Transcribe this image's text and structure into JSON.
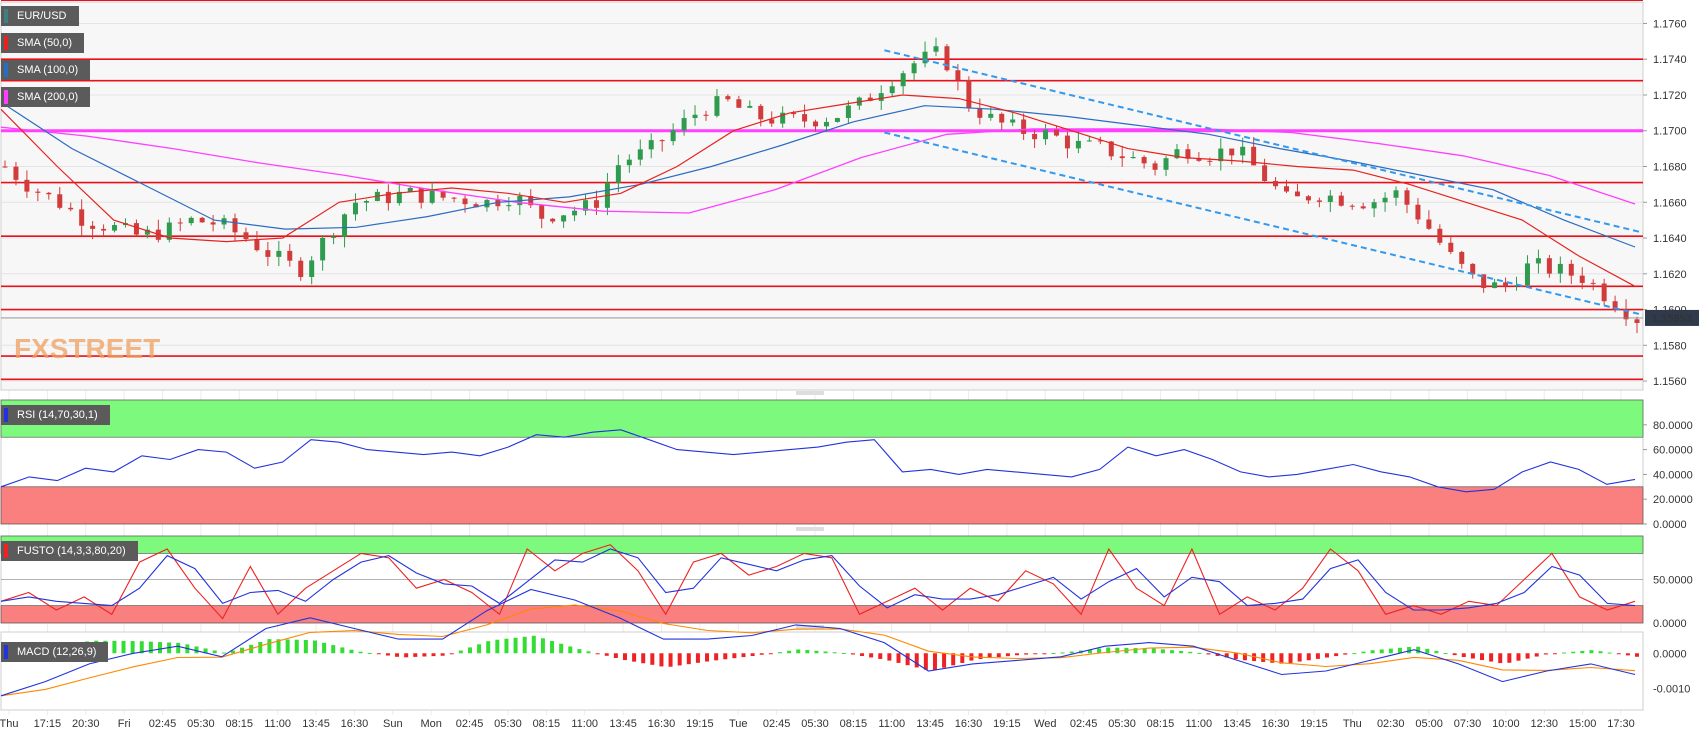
{
  "symbol": "EUR/USD",
  "watermark": "FXSTREET",
  "last_price": "1.15953",
  "colors": {
    "sma50": "#e8231f",
    "sma100": "#2b6cc0",
    "sma200": "#ff40ff",
    "level": "#e8111b",
    "channel": "#3399ee",
    "rsi": "#2233dd",
    "fusto_k": "#ee2222",
    "fusto_d": "#2233dd",
    "macd": "#2233dd",
    "signal": "#ff8800",
    "overbought": "#7dfa7d",
    "oversold": "#fa7f7f",
    "bull": "#2e9b4e",
    "bear": "#d23b3b",
    "price_tag": "#2f3b4c"
  },
  "indicators": {
    "main": [
      "EUR/USD",
      "SMA (50,0)",
      "SMA (100,0)",
      "SMA (200,0)"
    ],
    "rsi": "RSI (14,70,30,1)",
    "fusto": "FUSTO (14,3,3,80,20)",
    "macd": "MACD (12,26,9)"
  },
  "chart_data": {
    "type": "candlestick",
    "x_ticks": [
      "Thu",
      "17:15",
      "20:30",
      "Fri",
      "02:45",
      "05:30",
      "08:15",
      "11:00",
      "13:45",
      "16:30",
      "Sun",
      "Mon",
      "02:45",
      "05:30",
      "08:15",
      "11:00",
      "13:45",
      "16:30",
      "19:15",
      "Tue",
      "02:45",
      "05:30",
      "08:15",
      "11:00",
      "13:45",
      "16:30",
      "19:15",
      "Wed",
      "02:45",
      "05:30",
      "08:15",
      "11:00",
      "13:45",
      "16:30",
      "19:15",
      "Thu",
      "02:30",
      "05:00",
      "07:30",
      "10:00",
      "12:30",
      "15:00",
      "17:30"
    ],
    "price_axis": [
      "1.1760",
      "1.1740",
      "1.1720",
      "1.1700",
      "1.1680",
      "1.1660",
      "1.1640",
      "1.1620",
      "1.1600",
      "1.1580",
      "1.1560"
    ],
    "price_range": [
      1.1555,
      1.1772
    ],
    "horizontal_levels": [
      1.1773,
      1.174,
      1.1728,
      1.17,
      1.1671,
      1.1641,
      1.1613,
      1.16,
      1.1574,
      1.1561
    ],
    "price_path": [
      1.168,
      1.1668,
      1.166,
      1.165,
      1.1646,
      1.1641,
      1.1644,
      1.165,
      1.1648,
      1.164,
      1.163,
      1.1622,
      1.164,
      1.166,
      1.1662,
      1.1665,
      1.1663,
      1.1662,
      1.166,
      1.1664,
      1.1652,
      1.1655,
      1.1658,
      1.1683,
      1.1688,
      1.17,
      1.1712,
      1.1716,
      1.1708,
      1.1706,
      1.1706,
      1.1708,
      1.1715,
      1.1728,
      1.1738,
      1.1744,
      1.1715,
      1.1705,
      1.17,
      1.1698,
      1.1692,
      1.169,
      1.1685,
      1.168,
      1.169,
      1.1687,
      1.169,
      1.1675,
      1.166,
      1.1665,
      1.1662,
      1.166,
      1.1665,
      1.165,
      1.163,
      1.1615,
      1.1612,
      1.1625,
      1.1622,
      1.1618,
      1.1606,
      1.1595
    ],
    "sma50": [
      1.1712,
      1.168,
      1.165,
      1.164,
      1.1638,
      1.164,
      1.166,
      1.1665,
      1.1668,
      1.1665,
      1.166,
      1.1665,
      1.168,
      1.17,
      1.171,
      1.1715,
      1.172,
      1.1718,
      1.171,
      1.17,
      1.169,
      1.1685,
      1.1683,
      1.168,
      1.1678,
      1.167,
      1.166,
      1.165,
      1.163,
      1.1613
    ],
    "sma100": [
      1.1716,
      1.169,
      1.167,
      1.165,
      1.1645,
      1.1646,
      1.1652,
      1.166,
      1.1663,
      1.167,
      1.168,
      1.1692,
      1.1705,
      1.1714,
      1.1712,
      1.1708,
      1.1703,
      1.1698,
      1.169,
      1.1683,
      1.1675,
      1.1667,
      1.165,
      1.1635
    ],
    "sma200": [
      1.1702,
      1.1697,
      1.169,
      1.1682,
      1.1675,
      1.1667,
      1.166,
      1.1655,
      1.1654,
      1.1667,
      1.1685,
      1.1698,
      1.1701,
      1.1701,
      1.1701,
      1.1699,
      1.1693,
      1.1686,
      1.1675,
      1.1659
    ],
    "channel_upper": [
      [
        1.1745,
        1.1643
      ]
    ],
    "channel_lower": [
      [
        1.1699,
        1.1597
      ]
    ],
    "rsi": {
      "axis": [
        "80.0000",
        "60.0000",
        "40.0000",
        "20.0000",
        "0.0000"
      ],
      "overbought": 70,
      "oversold": 30,
      "values": [
        30,
        38,
        35,
        45,
        42,
        55,
        52,
        60,
        58,
        45,
        50,
        68,
        66,
        60,
        58,
        56,
        58,
        55,
        62,
        72,
        70,
        74,
        76,
        68,
        60,
        58,
        56,
        58,
        60,
        62,
        66,
        68,
        42,
        44,
        40,
        44,
        42,
        40,
        38,
        44,
        62,
        55,
        60,
        52,
        42,
        38,
        40,
        44,
        48,
        42,
        38,
        30,
        26,
        28,
        42,
        50,
        44,
        32,
        36
      ]
    },
    "fusto": {
      "axis": [
        "50.0000",
        "0.0000"
      ],
      "upper": 80,
      "lower": 20,
      "k": [
        25,
        35,
        15,
        30,
        10,
        70,
        85,
        40,
        5,
        65,
        10,
        40,
        60,
        80,
        75,
        40,
        50,
        35,
        10,
        85,
        60,
        80,
        90,
        60,
        10,
        70,
        80,
        55,
        65,
        80,
        75,
        10,
        25,
        40,
        15,
        40,
        25,
        60,
        45,
        10,
        85,
        40,
        20,
        85,
        10,
        30,
        15,
        40,
        85,
        60,
        10,
        20,
        10,
        25,
        20,
        50,
        80,
        30,
        15,
        25
      ]
    },
    "macd": {
      "axis": [
        "0.0000",
        "-0.0010"
      ],
      "values": [
        -0.0012,
        -0.0008,
        -0.0003,
        0.0,
        0.0002,
        -0.0001,
        0.0007,
        0.001,
        0.0007,
        0.0004,
        0.0004,
        0.0012,
        0.0018,
        0.0015,
        0.001,
        0.0004,
        0.0004,
        0.0005,
        0.0008,
        0.0007,
        0.0003,
        -0.0005,
        -0.0003,
        -0.0002,
        -0.0001,
        0.0002,
        0.0003,
        0.0002,
        -0.0002,
        -0.0006,
        -0.0005,
        -0.0002,
        0.0001,
        -0.0003,
        -0.0008,
        -0.0005,
        -0.0003,
        -0.0006
      ]
    }
  }
}
